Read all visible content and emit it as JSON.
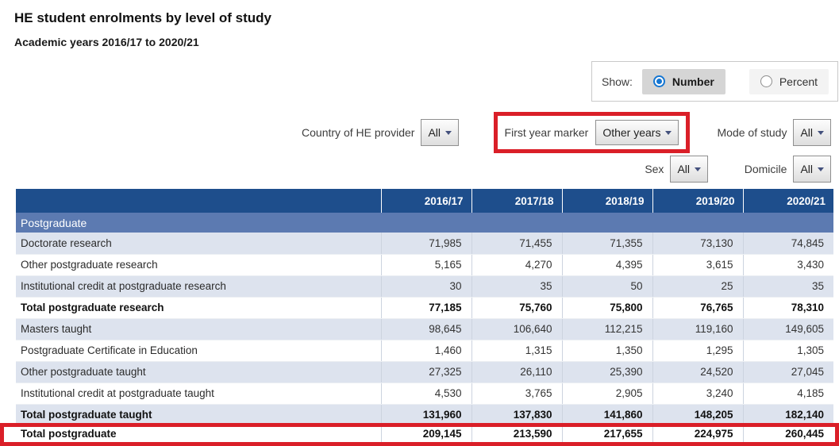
{
  "page": {
    "title": "HE student enrolments by level of study",
    "subtitle": "Academic years 2016/17 to 2020/21"
  },
  "show_toggle": {
    "label": "Show:",
    "options": [
      {
        "label": "Number",
        "selected": true
      },
      {
        "label": "Percent",
        "selected": false
      }
    ]
  },
  "filters": [
    {
      "label": "Country of HE provider",
      "value": "All"
    },
    {
      "label": "First year marker",
      "value": "Other years",
      "highlighted": true
    },
    {
      "label": "Mode of study",
      "value": "All"
    },
    {
      "label": "Sex",
      "value": "All"
    },
    {
      "label": "Domicile",
      "value": "All"
    }
  ],
  "table": {
    "columns": [
      "2016/17",
      "2017/18",
      "2018/19",
      "2019/20",
      "2020/21"
    ],
    "group_label": "Postgraduate",
    "rows": [
      {
        "label": "Doctorate research",
        "values": [
          "71,985",
          "71,455",
          "71,355",
          "73,130",
          "74,845"
        ],
        "bold": false
      },
      {
        "label": "Other postgraduate research",
        "values": [
          "5,165",
          "4,270",
          "4,395",
          "3,615",
          "3,430"
        ],
        "bold": false
      },
      {
        "label": "Institutional credit at postgraduate research",
        "values": [
          "30",
          "35",
          "50",
          "25",
          "35"
        ],
        "bold": false
      },
      {
        "label": "Total postgraduate research",
        "values": [
          "77,185",
          "75,760",
          "75,800",
          "76,765",
          "78,310"
        ],
        "bold": true
      },
      {
        "label": "Masters taught",
        "values": [
          "98,645",
          "106,640",
          "112,215",
          "119,160",
          "149,605"
        ],
        "bold": false
      },
      {
        "label": "Postgraduate Certificate in Education",
        "values": [
          "1,460",
          "1,315",
          "1,350",
          "1,295",
          "1,305"
        ],
        "bold": false
      },
      {
        "label": "Other postgraduate taught",
        "values": [
          "27,325",
          "26,110",
          "25,390",
          "24,520",
          "27,045"
        ],
        "bold": false
      },
      {
        "label": "Institutional credit at postgraduate taught",
        "values": [
          "4,530",
          "3,765",
          "2,905",
          "3,240",
          "4,185"
        ],
        "bold": false
      },
      {
        "label": "Total postgraduate taught",
        "values": [
          "131,960",
          "137,830",
          "141,860",
          "148,205",
          "182,140"
        ],
        "bold": true
      },
      {
        "label": "Total postgraduate",
        "values": [
          "209,145",
          "213,590",
          "217,655",
          "224,975",
          "260,445"
        ],
        "bold": true,
        "highlighted": true
      }
    ]
  },
  "colors": {
    "header_blue": "#1e4e8c",
    "group_blue": "#5c7ab1",
    "row_alt": "#dde3ee",
    "highlight_red": "#da1f28",
    "radio_blue": "#1576d2"
  }
}
